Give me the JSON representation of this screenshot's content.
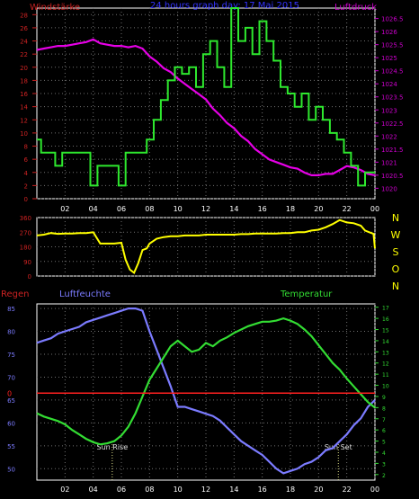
{
  "colors": {
    "wind": "#2ee82e",
    "pressure": "#e600e6",
    "direction": "#ffff00",
    "humidity": "#7b7bff",
    "temperature": "#33dd33",
    "rain": "#ff2020",
    "frame": "#ffffff",
    "grid": "#707070",
    "left_axis": "#cc2222",
    "right_axis": "#cc00cc",
    "title": "#3333ff"
  },
  "chart_data": [
    {
      "type": "line",
      "title": "24 hours graph day: 17 Mai 2015",
      "left_label": "Windstärke",
      "right_label": "Luftdruck",
      "x_ticks": [
        "02",
        "04",
        "06",
        "08",
        "10",
        "12",
        "14",
        "16",
        "18",
        "20",
        "22",
        "00"
      ],
      "xlim": [
        0,
        24
      ],
      "left_ylim": [
        0,
        29
      ],
      "left_ticks": [
        "0",
        "2",
        "4",
        "6",
        "8",
        "10",
        "12",
        "14",
        "16",
        "18",
        "20",
        "22",
        "24",
        "26",
        "28"
      ],
      "right_ylim": [
        1019.6,
        1026.9
      ],
      "right_ticks": [
        "1020",
        "1020.5",
        "1021",
        "1021.5",
        "1022",
        "1022.5",
        "1023",
        "1023.5",
        "1024",
        "1024.5",
        "1025",
        "1025.5",
        "1026",
        "1026.5"
      ],
      "grid": true,
      "series": [
        {
          "name": "Windstärke",
          "axis": "left",
          "x": [
            0,
            0.3,
            0.3,
            1.3,
            1.3,
            1.8,
            1.8,
            3.8,
            3.8,
            4.3,
            4.3,
            5.8,
            5.8,
            6.3,
            6.3,
            7.8,
            7.8,
            8.3,
            8.3,
            8.8,
            8.8,
            9.3,
            9.3,
            9.8,
            9.8,
            10.3,
            10.3,
            10.8,
            10.8,
            11.3,
            11.3,
            11.8,
            11.8,
            12.3,
            12.3,
            12.8,
            12.8,
            13.3,
            13.3,
            13.8,
            13.8,
            14.3,
            14.3,
            14.8,
            14.8,
            15.3,
            15.3,
            15.8,
            15.8,
            16.3,
            16.3,
            16.8,
            16.8,
            17.3,
            17.3,
            17.8,
            17.8,
            18.3,
            18.3,
            18.8,
            18.8,
            19.3,
            19.3,
            19.8,
            19.8,
            20.3,
            20.3,
            20.8,
            20.8,
            21.3,
            21.3,
            21.8,
            21.8,
            22.3,
            22.3,
            22.8,
            22.8,
            23.3,
            23.3,
            24
          ],
          "values": [
            9,
            9,
            7,
            7,
            5,
            5,
            7,
            7,
            2,
            2,
            5,
            5,
            2,
            2,
            7,
            7,
            9,
            9,
            12,
            12,
            15,
            15,
            18,
            18,
            20,
            20,
            19,
            19,
            20,
            20,
            17,
            17,
            22,
            22,
            24,
            24,
            20,
            20,
            17,
            17,
            29,
            29,
            24,
            24,
            26,
            26,
            22,
            22,
            27,
            27,
            24,
            24,
            21,
            21,
            17,
            17,
            16,
            16,
            14,
            14,
            16,
            16,
            12,
            12,
            14,
            14,
            12,
            12,
            10,
            10,
            9,
            9,
            7,
            7,
            5,
            5,
            2,
            2,
            4,
            4
          ]
        },
        {
          "name": "Luftdruck",
          "axis": "right",
          "x": [
            0,
            0.5,
            1,
            1.5,
            2,
            2.5,
            3,
            3.5,
            4,
            4.5,
            5,
            5.5,
            6,
            6.5,
            7,
            7.5,
            8,
            8.5,
            9,
            9.5,
            10,
            10.5,
            11,
            11.5,
            12,
            12.5,
            13,
            13.5,
            14,
            14.5,
            15,
            15.5,
            16,
            16.5,
            17,
            17.5,
            18,
            18.5,
            19,
            19.5,
            20,
            20.5,
            21,
            21.5,
            22,
            22.5,
            23,
            23.5,
            24
          ],
          "values": [
            1025.3,
            1025.35,
            1025.4,
            1025.45,
            1025.45,
            1025.5,
            1025.55,
            1025.6,
            1025.7,
            1025.55,
            1025.5,
            1025.45,
            1025.45,
            1025.4,
            1025.45,
            1025.35,
            1025.05,
            1024.85,
            1024.6,
            1024.45,
            1024.2,
            1024.0,
            1023.8,
            1023.6,
            1023.4,
            1023.05,
            1022.8,
            1022.5,
            1022.3,
            1022.0,
            1021.8,
            1021.5,
            1021.3,
            1021.1,
            1021.0,
            1020.9,
            1020.8,
            1020.75,
            1020.6,
            1020.5,
            1020.5,
            1020.55,
            1020.55,
            1020.7,
            1020.85,
            1020.8,
            1020.7,
            1020.55,
            1020.5
          ]
        }
      ]
    },
    {
      "type": "line",
      "left_ylim": [
        0,
        360
      ],
      "left_ticks": [
        "0",
        "90",
        "180",
        "270",
        "360"
      ],
      "right_labels": [
        "N",
        "W",
        "S",
        "O",
        "N"
      ],
      "series": [
        {
          "name": "direction",
          "x": [
            0,
            0.5,
            1,
            1.5,
            2,
            2.5,
            3,
            3.5,
            4,
            4.5,
            5,
            5.5,
            6,
            6.3,
            6.6,
            6.9,
            7.2,
            7.5,
            7.8,
            8,
            8.5,
            9,
            9.5,
            10,
            10.5,
            11,
            11.5,
            12,
            12.5,
            13,
            13.5,
            14,
            14.5,
            15,
            15.5,
            16,
            16.5,
            17,
            17.5,
            18,
            18.5,
            19,
            19.5,
            20,
            20.5,
            21,
            21.5,
            22,
            22.5,
            23,
            23.3,
            23.6,
            23.9,
            24
          ],
          "values": [
            250,
            255,
            265,
            260,
            262,
            262,
            265,
            265,
            270,
            200,
            200,
            200,
            205,
            100,
            40,
            20,
            80,
            160,
            170,
            200,
            230,
            240,
            245,
            245,
            250,
            250,
            250,
            255,
            255,
            255,
            255,
            255,
            258,
            258,
            262,
            262,
            262,
            262,
            265,
            265,
            270,
            270,
            280,
            285,
            300,
            320,
            345,
            330,
            325,
            310,
            280,
            270,
            260,
            170
          ]
        }
      ]
    },
    {
      "type": "line",
      "left_label": "Regen",
      "humidity_label": "Luftfeuchte",
      "right_label": "Temperatur",
      "x_ticks": [
        "02",
        "04",
        "06",
        "08",
        "10",
        "12",
        "14",
        "16",
        "18",
        "20",
        "22",
        "00"
      ],
      "humidity_ylim": [
        47.5,
        86
      ],
      "humidity_ticks": [
        "50",
        "55",
        "60",
        "65",
        "70",
        "75",
        "80",
        "85"
      ],
      "rain_label": "0",
      "temp_ylim": [
        1.5,
        17.3
      ],
      "temp_ticks": [
        "2",
        "3",
        "4",
        "5",
        "6",
        "7",
        "8",
        "9",
        "10",
        "11",
        "12",
        "13",
        "14",
        "15",
        "16",
        "17"
      ],
      "annotations": [
        {
          "label": "Sun Rise",
          "x": 5.35
        },
        {
          "label": "Sun Set",
          "x": 21.4
        }
      ],
      "series": [
        {
          "name": "Luftfeuchte",
          "x": [
            0,
            0.5,
            1,
            1.5,
            2,
            2.5,
            3,
            3.5,
            4,
            4.5,
            5,
            5.5,
            6,
            6.5,
            7,
            7.5,
            8,
            8.5,
            9,
            9.5,
            10,
            10.5,
            11,
            11.5,
            12,
            12.5,
            13,
            13.5,
            14,
            14.5,
            15,
            15.5,
            16,
            16.5,
            17,
            17.5,
            18,
            18.5,
            19,
            19.5,
            20,
            20.5,
            21,
            21.5,
            22,
            22.5,
            23,
            23.5,
            24
          ],
          "values": [
            77.5,
            78,
            78.5,
            79.5,
            80,
            80.5,
            81,
            82,
            82.5,
            83,
            83.5,
            84,
            84.5,
            85,
            85,
            84.5,
            80,
            76,
            72,
            68,
            63.5,
            63.5,
            63,
            62.5,
            62,
            61.5,
            60.5,
            59,
            57.5,
            56,
            55,
            54,
            53,
            51.5,
            50,
            49,
            49.5,
            50,
            51,
            51.5,
            52.5,
            54,
            54.5,
            56,
            57.5,
            59.5,
            61,
            63.5,
            65
          ]
        },
        {
          "name": "Temperatur",
          "x": [
            0,
            0.5,
            1,
            1.5,
            2,
            2.5,
            3,
            3.5,
            4,
            4.5,
            5,
            5.5,
            6,
            6.5,
            7,
            7.5,
            8,
            8.5,
            9,
            9.5,
            10,
            10.5,
            11,
            11.5,
            12,
            12.5,
            13,
            13.5,
            14,
            14.5,
            15,
            15.5,
            16,
            16.5,
            17,
            17.5,
            18,
            18.5,
            19,
            19.5,
            20,
            20.5,
            21,
            21.5,
            22,
            22.5,
            23,
            23.5,
            24
          ],
          "values": [
            7.5,
            7.2,
            7.0,
            6.8,
            6.5,
            6.0,
            5.6,
            5.2,
            4.9,
            4.7,
            4.8,
            5.0,
            5.5,
            6.3,
            7.5,
            9.0,
            10.5,
            11.5,
            12.5,
            13.5,
            14.0,
            13.5,
            13.0,
            13.2,
            13.8,
            13.5,
            14.0,
            14.3,
            14.7,
            15.0,
            15.3,
            15.5,
            15.7,
            15.7,
            15.8,
            16.0,
            15.8,
            15.5,
            15.0,
            14.4,
            13.6,
            12.8,
            12.0,
            11.4,
            10.6,
            9.9,
            9.2,
            8.5,
            8.0
          ]
        },
        {
          "name": "Regen",
          "x": [
            0,
            24
          ],
          "values": [
            0,
            0
          ]
        }
      ]
    }
  ]
}
